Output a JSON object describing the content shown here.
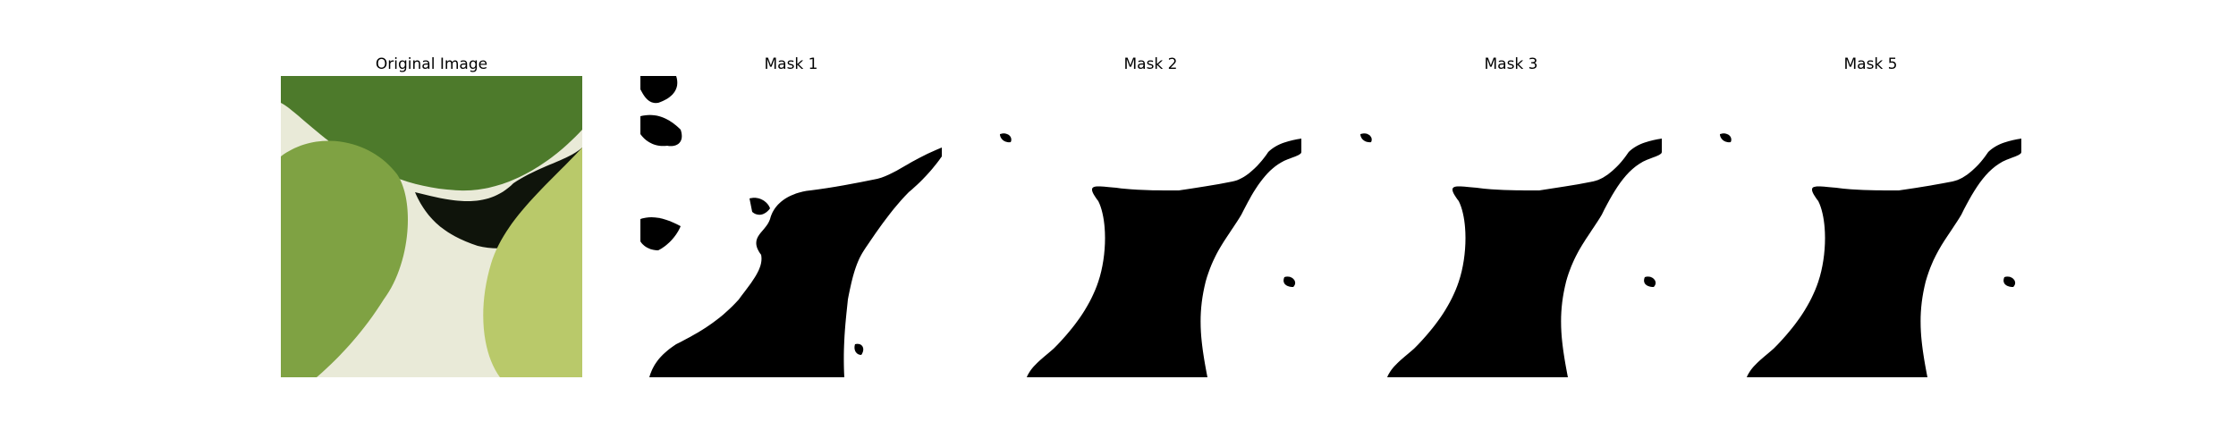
{
  "figure": {
    "panels": [
      {
        "title": "Original Image"
      },
      {
        "title": "Mask 1"
      },
      {
        "title": "Mask 2"
      },
      {
        "title": "Mask 3"
      },
      {
        "title": "Mask 5"
      }
    ]
  },
  "colors": {
    "background": "#ffffff",
    "mask_fg": "#000000",
    "mask_bg": "#ffffff",
    "leaf_dark": "#4d7a2b",
    "leaf_mid": "#7fa243",
    "leaf_light": "#b9c96a",
    "shadow": "#0f140b",
    "plate": "#e9ead8"
  }
}
